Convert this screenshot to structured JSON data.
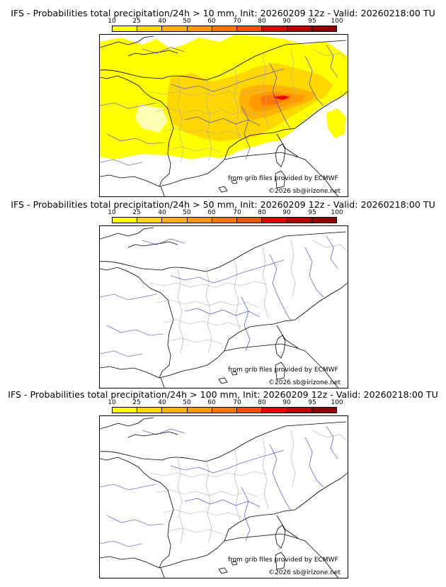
{
  "colorbar": {
    "levels": [
      "10",
      "25",
      "40",
      "50",
      "60",
      "70",
      "80",
      "90",
      "95",
      "100"
    ],
    "colors": [
      "#ffff00",
      "#ffd700",
      "#ffb300",
      "#ff9900",
      "#ff7700",
      "#ff5000",
      "#e60000",
      "#b80000",
      "#8c0000",
      "#5a0000"
    ]
  },
  "panels": [
    {
      "title": "IFS - Probabilities total precipitation/24h > 10 mm, Init: 20260209 12z - Valid: 20260218:00 TU",
      "credit_source": "from grib files provided by ECMWF",
      "credit_copyright": "©2026 sb@irizone.net"
    },
    {
      "title": "IFS - Probabilities total precipitation/24h > 50 mm, Init: 20260209 12z - Valid: 20260218:00 TU",
      "credit_source": "from grib files provided by ECMWF",
      "credit_copyright": "©2026 sb@irizone.net"
    },
    {
      "title": "IFS - Probabilities total precipitation/24h > 100 mm, Init: 20260209 12z - Valid: 20260218:00 TU",
      "credit_source": "from grib files provided by ECMWF",
      "credit_copyright": "©2026 sb@irizone.net"
    }
  ]
}
